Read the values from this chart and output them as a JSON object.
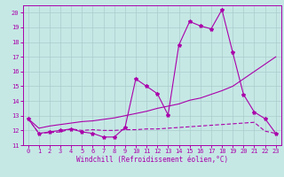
{
  "xlabel": "Windchill (Refroidissement éolien,°C)",
  "bg_color": "#c5e8e5",
  "grid_color": "#aacccc",
  "line_color": "#aa00aa",
  "x_ticks": [
    0,
    1,
    2,
    3,
    4,
    5,
    6,
    7,
    8,
    9,
    10,
    11,
    12,
    13,
    14,
    15,
    16,
    17,
    18,
    19,
    20,
    21,
    22,
    23
  ],
  "ylim": [
    11.0,
    20.5
  ],
  "xlim": [
    -0.5,
    23.5
  ],
  "y_ticks": [
    11,
    12,
    13,
    14,
    15,
    16,
    17,
    18,
    19,
    20
  ],
  "line1_x": [
    0,
    1,
    2,
    3,
    4,
    5,
    6,
    7,
    8,
    9,
    10,
    11,
    12,
    13,
    14,
    15,
    16,
    17,
    18,
    19,
    20,
    21,
    22,
    23
  ],
  "line1_y": [
    12.8,
    11.8,
    11.9,
    12.0,
    12.1,
    11.9,
    11.8,
    11.55,
    11.55,
    12.2,
    15.5,
    15.0,
    14.5,
    13.05,
    17.8,
    19.4,
    19.1,
    18.9,
    20.2,
    17.3,
    14.45,
    13.25,
    12.8,
    11.8
  ],
  "line2_x": [
    0,
    1,
    2,
    3,
    4,
    5,
    6,
    7,
    8,
    9,
    10,
    11,
    12,
    13,
    14,
    15,
    16,
    17,
    18,
    19,
    20,
    21,
    22,
    23
  ],
  "line2_y": [
    12.8,
    12.15,
    12.3,
    12.4,
    12.5,
    12.6,
    12.65,
    12.75,
    12.85,
    13.0,
    13.15,
    13.3,
    13.5,
    13.65,
    13.8,
    14.05,
    14.2,
    14.45,
    14.7,
    15.0,
    15.5,
    16.0,
    16.5,
    17.0
  ],
  "line3_x": [
    0,
    1,
    2,
    3,
    4,
    5,
    6,
    7,
    8,
    9,
    10,
    11,
    12,
    13,
    14,
    15,
    16,
    17,
    18,
    19,
    20,
    21,
    22,
    23
  ],
  "line3_y": [
    12.8,
    11.8,
    11.85,
    11.9,
    12.1,
    12.0,
    12.05,
    12.0,
    12.0,
    12.05,
    12.05,
    12.1,
    12.1,
    12.15,
    12.2,
    12.25,
    12.3,
    12.35,
    12.4,
    12.45,
    12.5,
    12.55,
    11.95,
    11.8
  ]
}
